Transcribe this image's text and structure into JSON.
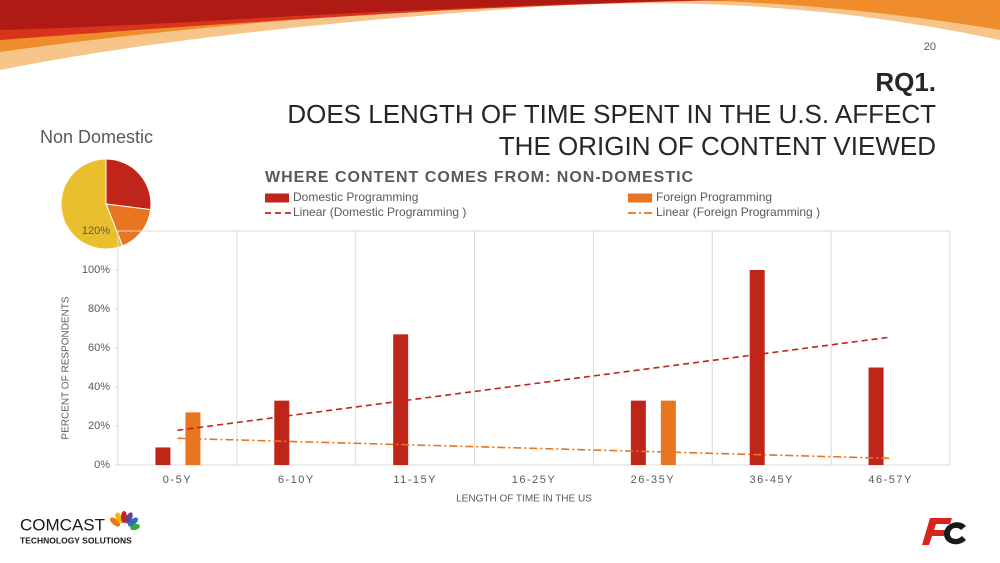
{
  "slide": {
    "page_number": "20",
    "title_line1": "RQ1.",
    "title_line2": "DOES LENGTH OF TIME SPENT IN THE U.S. AFFECT",
    "title_line3": "THE ORIGIN OF CONTENT VIEWED",
    "logo_name": "COMCAST",
    "logo_sub": "TECHNOLOGY SOLUTIONS"
  },
  "chart_data": [
    {
      "type": "pie",
      "title": "Non Domestic",
      "values": [
        27,
        17,
        56
      ],
      "colors": [
        "#c0251a",
        "#e8751f",
        "#e9bf2e"
      ]
    },
    {
      "type": "bar",
      "title": "WHERE CONTENT COMES FROM: NON-DOMESTIC",
      "x_label": "LENGTH OF TIME IN THE US",
      "y_label": "PERCENT OF RESPONDENTS",
      "categories": [
        "0-5Y",
        "6-10Y",
        "11-15Y",
        "16-25Y",
        "26-35Y",
        "36-45Y",
        "46-57Y"
      ],
      "series": [
        {
          "name": "Domestic Programming",
          "color": "#c0251a",
          "values": [
            9,
            33,
            67,
            0,
            33,
            100,
            50
          ]
        },
        {
          "name": "Foreign  Programming",
          "color": "#e8751f",
          "values": [
            27,
            0,
            0,
            0,
            33,
            0,
            0
          ]
        }
      ],
      "trendlines": [
        {
          "name": "Linear (Domestic Programming )",
          "color": "#c0251a",
          "dash": "6 4",
          "values": [
            17.8,
            65.6
          ]
        },
        {
          "name": "Linear (Foreign  Programming )",
          "color": "#e8751f",
          "dash": "8 3 2 3",
          "values": [
            13.7,
            3.4
          ]
        }
      ],
      "ylim": [
        0,
        120
      ],
      "yticks": [
        {
          "value": 0,
          "label": "0%"
        },
        {
          "value": 20,
          "label": "20%"
        },
        {
          "value": 40,
          "label": "40%"
        },
        {
          "value": 60,
          "label": "60%"
        },
        {
          "value": 80,
          "label": "80%"
        },
        {
          "value": 100,
          "label": "100%"
        },
        {
          "value": 120,
          "label": "120%"
        }
      ]
    }
  ]
}
